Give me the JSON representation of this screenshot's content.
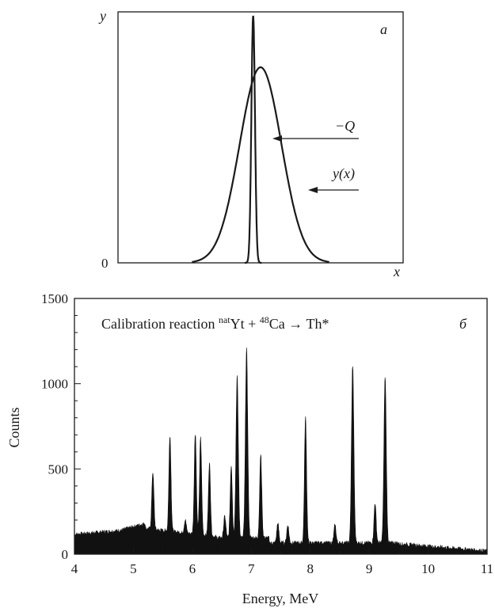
{
  "chart_data": [
    {
      "type": "line",
      "panel_label": "a",
      "xlabel": "x",
      "ylabel": "y",
      "ytick_labels": [
        "0"
      ],
      "series": [
        {
          "name": "y(x)",
          "shape": "broad-gaussian",
          "x": [
            0.35,
            0.4,
            0.45,
            0.5,
            0.55,
            0.6,
            0.65,
            0.7,
            0.75,
            0.8,
            0.85,
            0.9,
            0.95,
            1.0
          ],
          "y": [
            0.0,
            0.06,
            0.22,
            0.45,
            0.68,
            0.88,
            0.99,
            0.96,
            0.8,
            0.58,
            0.35,
            0.16,
            0.05,
            0.0
          ]
        },
        {
          "name": "−Q",
          "shape": "narrow-peak",
          "x": [
            0.6,
            0.61,
            0.62,
            0.63,
            0.64,
            0.65,
            0.66,
            0.67,
            0.68
          ],
          "y": [
            0.0,
            0.2,
            0.55,
            0.9,
            1.25,
            0.9,
            0.55,
            0.2,
            0.0
          ]
        }
      ],
      "annotations": [
        {
          "text": "−Q",
          "points_to": "narrow peak"
        },
        {
          "text": "y(x)",
          "points_to": "broad curve"
        }
      ]
    },
    {
      "type": "area",
      "panel_label": "б",
      "title": "Calibration reaction natYt + 48Ca → Th*",
      "title_parts": {
        "prefix": "Calibration reaction ",
        "sup1": "nat",
        "mid1": "Yt + ",
        "sup2": "48",
        "mid2": "Ca → Th*"
      },
      "xlabel": "Energy, MeV",
      "ylabel": "Counts",
      "xlim": [
        4,
        11
      ],
      "ylim": [
        0,
        1500
      ],
      "xticks": [
        4,
        5,
        6,
        7,
        8,
        9,
        10,
        11
      ],
      "yticks": [
        0,
        500,
        1000,
        1500
      ],
      "peaks": [
        {
          "x": 5.33,
          "y": 480
        },
        {
          "x": 5.62,
          "y": 700
        },
        {
          "x": 5.88,
          "y": 200
        },
        {
          "x": 6.05,
          "y": 710
        },
        {
          "x": 6.14,
          "y": 680
        },
        {
          "x": 6.29,
          "y": 530
        },
        {
          "x": 6.55,
          "y": 220
        },
        {
          "x": 6.66,
          "y": 520
        },
        {
          "x": 6.76,
          "y": 1040
        },
        {
          "x": 6.92,
          "y": 1200
        },
        {
          "x": 7.16,
          "y": 580
        },
        {
          "x": 7.45,
          "y": 180
        },
        {
          "x": 7.62,
          "y": 170
        },
        {
          "x": 7.92,
          "y": 800
        },
        {
          "x": 8.42,
          "y": 170
        },
        {
          "x": 8.72,
          "y": 1110
        },
        {
          "x": 9.1,
          "y": 300
        },
        {
          "x": 9.27,
          "y": 1040
        }
      ]
    }
  ]
}
